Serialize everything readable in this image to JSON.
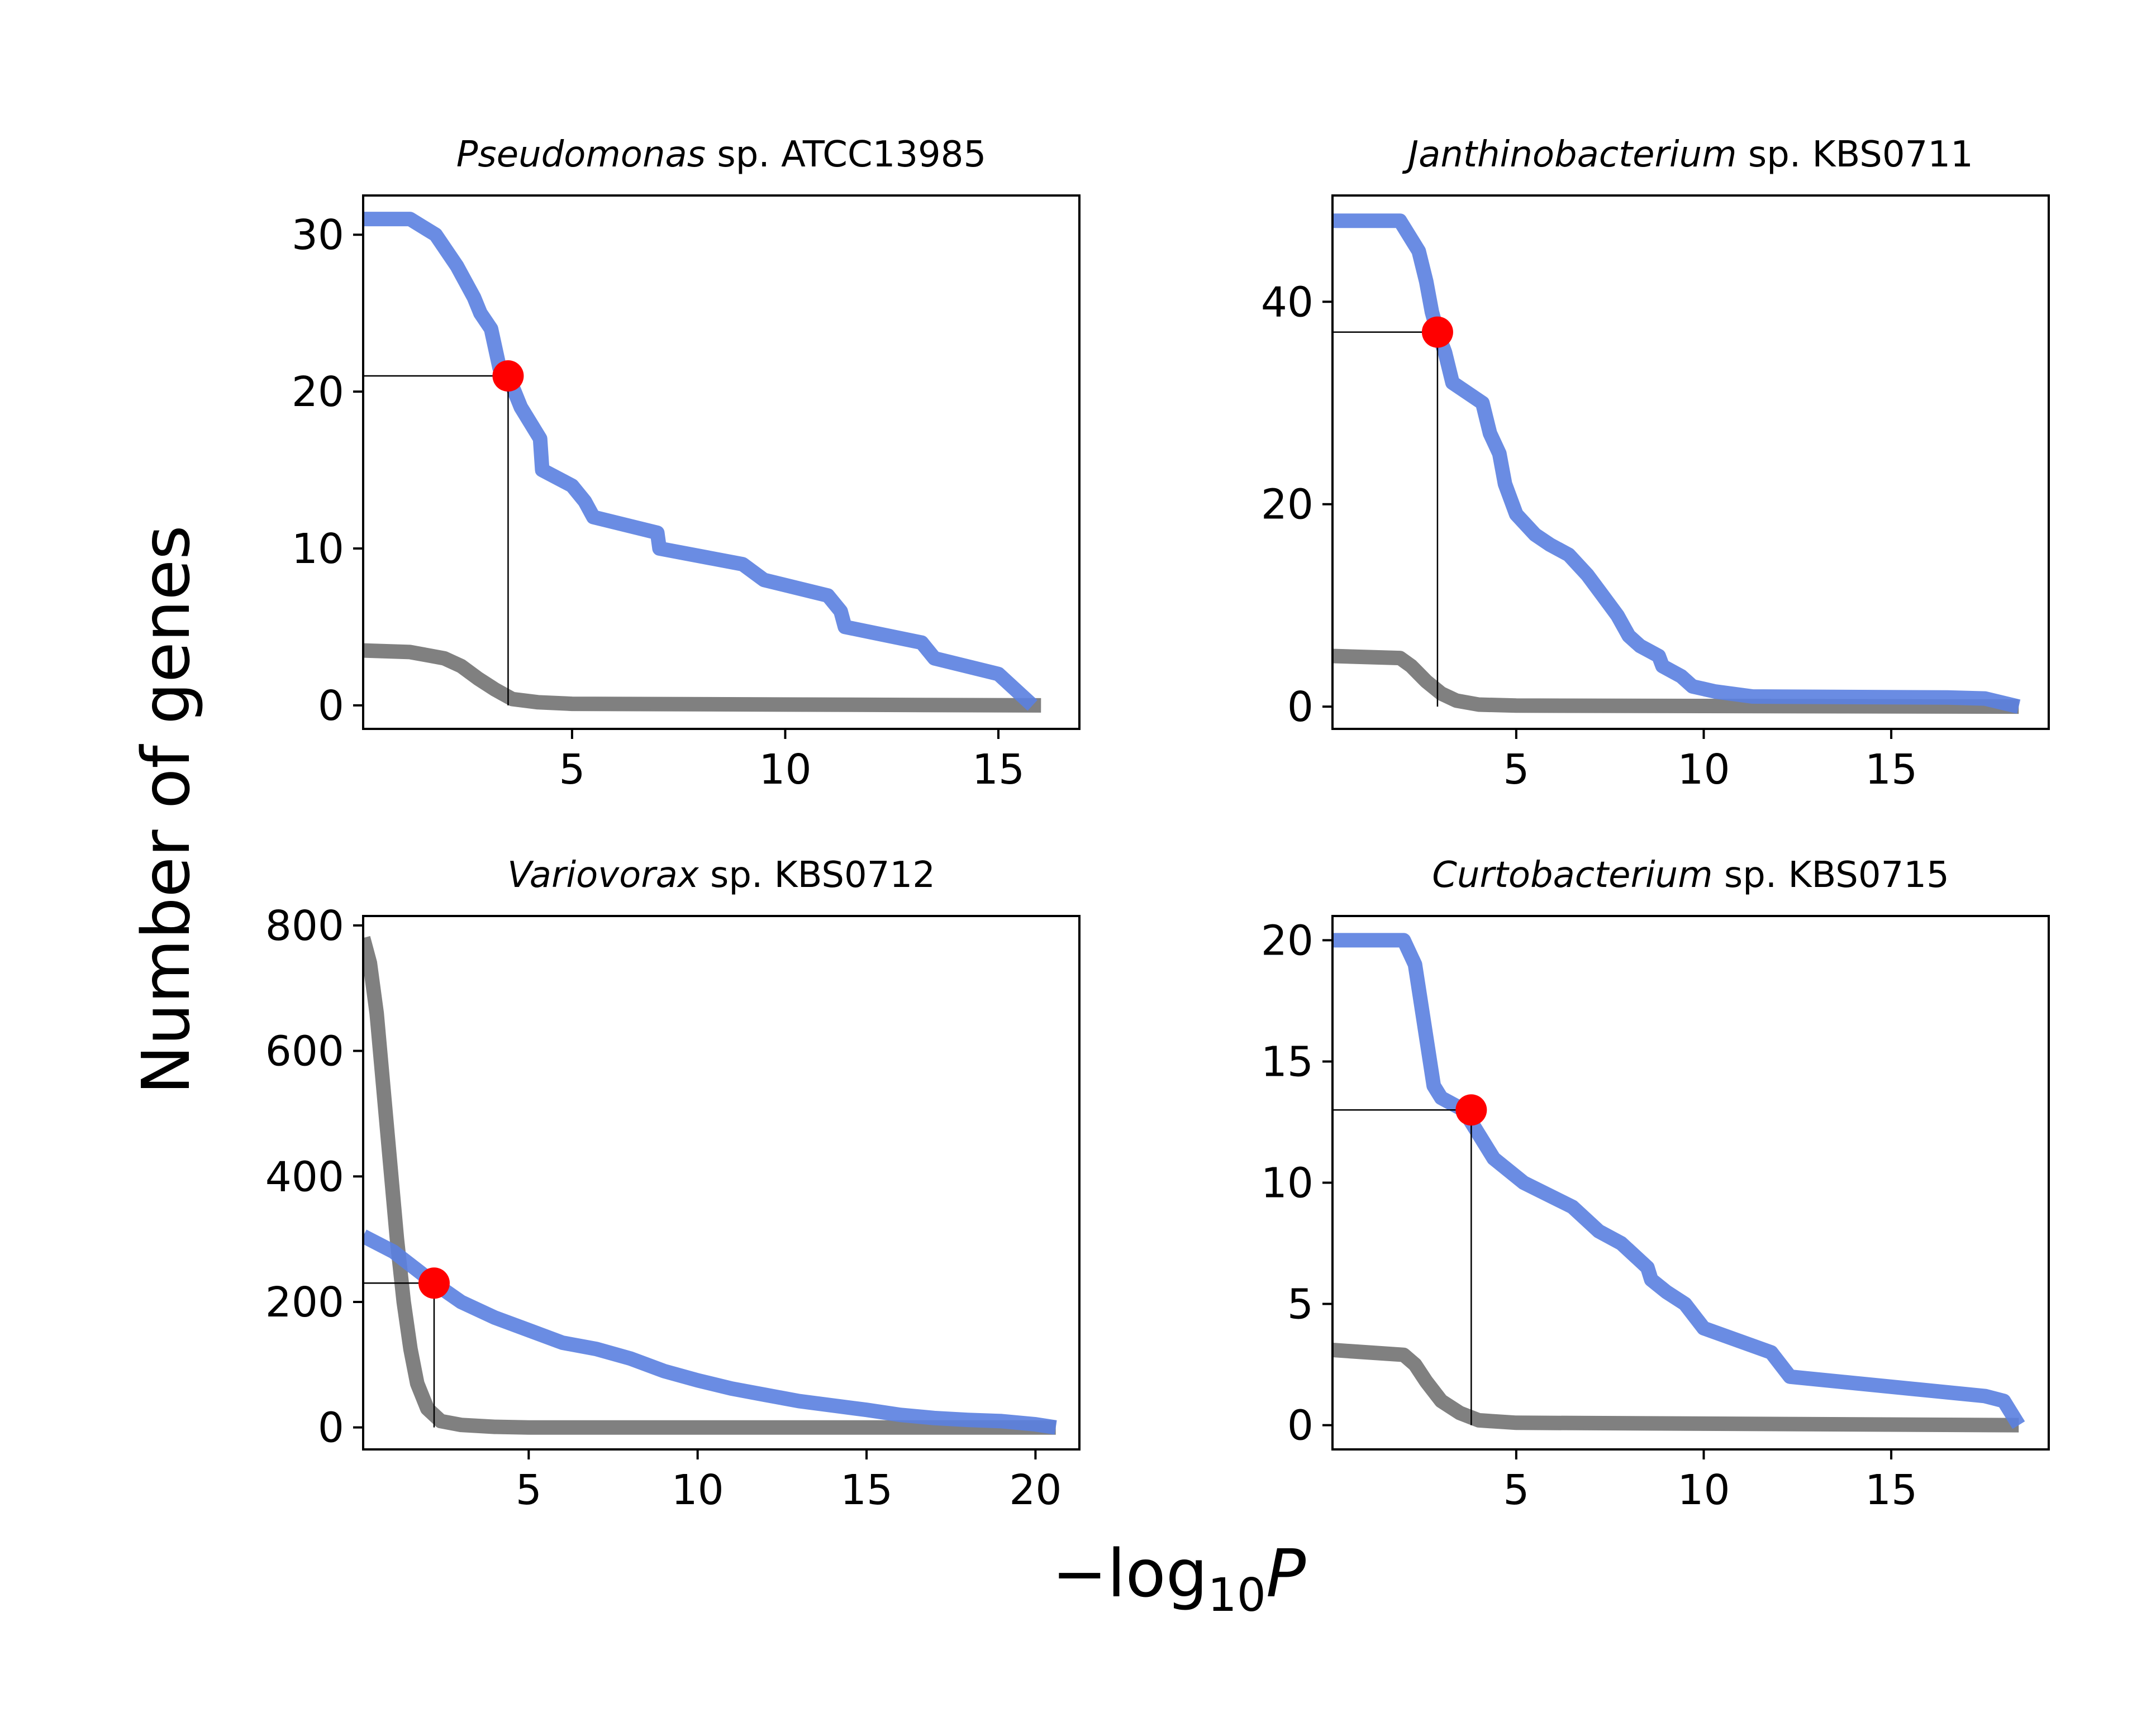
{
  "ylabel": "Number of genes",
  "xlabel": {
    "main": "−log",
    "sub": "10",
    "var": "P"
  },
  "colors": {
    "observed": "#5a7fe0",
    "null": "#808080",
    "threshold_point": "#ff0000",
    "guide": "#000000"
  },
  "chart_data": [
    {
      "type": "line",
      "title_genus": "Pseudomonas",
      "title_rest": " sp. ATCC13985",
      "xlim": [
        0.1,
        16.9
      ],
      "ylim": [
        -1.5,
        32.5
      ],
      "xticks": [
        5,
        10,
        15
      ],
      "yticks": [
        0,
        10,
        20,
        30
      ],
      "threshold": {
        "x": 3.5,
        "y": 21
      },
      "series": [
        {
          "role": "observed",
          "x": [
            0.1,
            1.2,
            1.8,
            2.3,
            2.7,
            2.85,
            3.1,
            3.3,
            3.5,
            3.8,
            4.25,
            4.3,
            5.0,
            5.3,
            5.5,
            7.0,
            7.05,
            9.0,
            9.5,
            11.0,
            11.3,
            11.4,
            13.2,
            13.5,
            15.0,
            15.8
          ],
          "y": [
            31,
            31,
            30,
            28,
            26,
            25,
            24,
            21.5,
            21,
            19,
            17,
            15,
            14,
            13,
            12,
            11,
            10,
            9,
            8,
            7,
            6,
            5,
            4,
            3,
            2,
            0
          ]
        },
        {
          "role": "null",
          "x": [
            0.1,
            1.2,
            1.6,
            2.0,
            2.4,
            2.8,
            3.2,
            3.6,
            4.2,
            5.0,
            16.0
          ],
          "y": [
            3.5,
            3.4,
            3.2,
            3.0,
            2.5,
            1.7,
            1.0,
            0.4,
            0.2,
            0.1,
            0
          ]
        }
      ]
    },
    {
      "type": "line",
      "title_genus": "Janthinobacterium",
      "title_rest": " sp. KBS0711",
      "xlim": [
        0.1,
        19.2
      ],
      "ylim": [
        -2.2,
        50.5
      ],
      "xticks": [
        5,
        10,
        15
      ],
      "yticks": [
        0,
        20,
        40
      ],
      "threshold": {
        "x": 2.9,
        "y": 37
      },
      "series": [
        {
          "role": "observed",
          "x": [
            0.1,
            1.9,
            2.4,
            2.6,
            2.75,
            2.9,
            3.1,
            3.3,
            4.1,
            4.3,
            4.55,
            4.7,
            4.9,
            5.0,
            5.5,
            5.9,
            6.4,
            6.9,
            7.3,
            7.7,
            8.0,
            8.3,
            8.8,
            8.9,
            9.4,
            9.7,
            10.3,
            11.3,
            16.5,
            17.5,
            18.4
          ],
          "y": [
            48,
            48,
            45,
            42,
            39,
            37,
            35,
            32,
            30,
            27,
            25,
            22,
            20,
            19,
            17,
            16,
            15,
            13,
            11,
            9,
            7,
            6,
            5,
            4,
            3,
            2,
            1.5,
            1,
            0.9,
            0.8,
            0
          ]
        },
        {
          "role": "null",
          "x": [
            0.1,
            1.9,
            2.2,
            2.6,
            3.0,
            3.4,
            4.0,
            5.0,
            18.4
          ],
          "y": [
            5,
            4.8,
            4.0,
            2.5,
            1.3,
            0.6,
            0.2,
            0.1,
            0
          ]
        }
      ]
    },
    {
      "type": "line",
      "title_genus": "Variovorax",
      "title_rest": " sp. KBS0712",
      "xlim": [
        0.1,
        21.3
      ],
      "ylim": [
        -35,
        815
      ],
      "xticks": [
        5,
        10,
        15,
        20
      ],
      "yticks": [
        0,
        200,
        400,
        600,
        800
      ],
      "threshold": {
        "x": 2.2,
        "y": 230
      },
      "series": [
        {
          "role": "observed",
          "x": [
            0.1,
            1.0,
            2.2,
            3.0,
            4.0,
            5.0,
            6.0,
            7.0,
            8.0,
            9.0,
            10.0,
            11.0,
            12.0,
            13.0,
            14.0,
            15.0,
            16.0,
            17.0,
            18.0,
            19.0,
            20.0,
            20.6
          ],
          "y": [
            305,
            280,
            230,
            200,
            175,
            155,
            135,
            125,
            110,
            90,
            75,
            62,
            52,
            42,
            35,
            28,
            20,
            15,
            12,
            10,
            5,
            0
          ]
        },
        {
          "role": "null",
          "x": [
            0.1,
            0.3,
            0.5,
            0.7,
            0.9,
            1.1,
            1.3,
            1.5,
            1.7,
            2.0,
            2.4,
            3.0,
            4.0,
            5.0,
            10.0,
            20.6
          ],
          "y": [
            780,
            740,
            660,
            540,
            420,
            300,
            200,
            125,
            70,
            30,
            10,
            4,
            1,
            0,
            0,
            0
          ]
        }
      ]
    },
    {
      "type": "line",
      "title_genus": "Curtobacterium",
      "title_rest": " sp. KBS0715",
      "xlim": [
        0.1,
        19.2
      ],
      "ylim": [
        -1,
        21
      ],
      "xticks": [
        5,
        10,
        15
      ],
      "yticks": [
        0,
        5,
        10,
        15,
        20
      ],
      "threshold": {
        "x": 3.8,
        "y": 13
      },
      "series": [
        {
          "role": "observed",
          "x": [
            0.1,
            2.0,
            2.3,
            2.5,
            2.7,
            2.8,
            3.0,
            3.6,
            3.8,
            4.4,
            5.2,
            6.5,
            7.2,
            7.8,
            8.5,
            8.6,
            9.0,
            9.5,
            10.0,
            11.8,
            12.3,
            17.5,
            18.0,
            18.4
          ],
          "y": [
            20,
            20,
            19,
            17,
            15,
            14,
            13.5,
            13,
            12.5,
            11,
            10,
            9,
            8,
            7.5,
            6.5,
            6,
            5.5,
            5,
            4,
            3,
            2,
            1.2,
            1,
            0
          ]
        },
        {
          "role": "null",
          "x": [
            0.1,
            2.0,
            2.3,
            2.6,
            3.0,
            3.5,
            4.0,
            5.0,
            18.4
          ],
          "y": [
            3.1,
            2.9,
            2.5,
            1.8,
            1.0,
            0.5,
            0.2,
            0.1,
            0
          ]
        }
      ]
    }
  ]
}
